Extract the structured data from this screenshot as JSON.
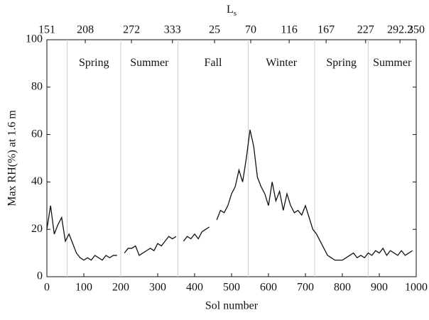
{
  "chart_data": {
    "type": "line",
    "xlabel": "Sol number",
    "ylabel": "Max RH(%) at 1.6 m",
    "x2label": "L",
    "x2label_sub": "s",
    "xlim": [
      0,
      1000
    ],
    "xticks": [
      0,
      100,
      200,
      300,
      400,
      500,
      600,
      700,
      800,
      900,
      1000
    ],
    "ylim": [
      0,
      100
    ],
    "yticks": [
      0,
      20,
      40,
      60,
      80,
      100
    ],
    "x2ticks": [
      {
        "value": 0,
        "label": "151"
      },
      {
        "value": 104,
        "label": "208"
      },
      {
        "value": 229,
        "label": "272"
      },
      {
        "value": 340,
        "label": "333"
      },
      {
        "value": 454,
        "label": "25"
      },
      {
        "value": 552,
        "label": "70"
      },
      {
        "value": 656,
        "label": "116"
      },
      {
        "value": 756,
        "label": "167"
      },
      {
        "value": 863,
        "label": "227"
      },
      {
        "value": 956,
        "label": "292.2"
      },
      {
        "value": 1000,
        "label": "350"
      }
    ],
    "season_bounds": [
      55,
      200,
      355,
      545,
      725,
      870
    ],
    "season_labels": [
      "Spring",
      "Summer",
      "Fall",
      "Winter",
      "Spring",
      "Summer"
    ],
    "color": "#111111",
    "x": [
      0,
      10,
      20,
      30,
      40,
      50,
      60,
      70,
      80,
      90,
      100,
      110,
      120,
      130,
      140,
      150,
      160,
      170,
      180,
      190,
      200,
      210,
      220,
      230,
      240,
      250,
      260,
      270,
      280,
      290,
      300,
      310,
      320,
      330,
      340,
      350,
      360,
      370,
      380,
      390,
      400,
      410,
      420,
      430,
      440,
      450,
      460,
      470,
      480,
      490,
      500,
      510,
      520,
      530,
      540,
      550,
      560,
      570,
      580,
      590,
      600,
      610,
      620,
      630,
      640,
      650,
      660,
      670,
      680,
      690,
      700,
      710,
      720,
      730,
      740,
      750,
      760,
      770,
      780,
      790,
      800,
      810,
      820,
      830,
      840,
      850,
      860,
      870,
      880,
      890,
      900,
      910,
      920,
      930,
      940,
      950,
      960,
      970,
      980,
      990
    ],
    "values": [
      20,
      30,
      18,
      22,
      25,
      15,
      18,
      14,
      10,
      8,
      7,
      8,
      7,
      9,
      8,
      7,
      9,
      8,
      9,
      9,
      null,
      10,
      12,
      12,
      13,
      9,
      10,
      11,
      12,
      11,
      14,
      13,
      15,
      17,
      16,
      17,
      null,
      15,
      17,
      16,
      18,
      16,
      19,
      20,
      21,
      null,
      24,
      28,
      27,
      30,
      35,
      38,
      45,
      40,
      50,
      62,
      55,
      42,
      38,
      35,
      30,
      40,
      32,
      36,
      28,
      35,
      30,
      27,
      28,
      26,
      30,
      25,
      20,
      18,
      15,
      12,
      9,
      8,
      7,
      7,
      7,
      8,
      9,
      10,
      8,
      9,
      8,
      10,
      9,
      11,
      10,
      12,
      9,
      11,
      10,
      9,
      11,
      9,
      10,
      11
    ]
  }
}
